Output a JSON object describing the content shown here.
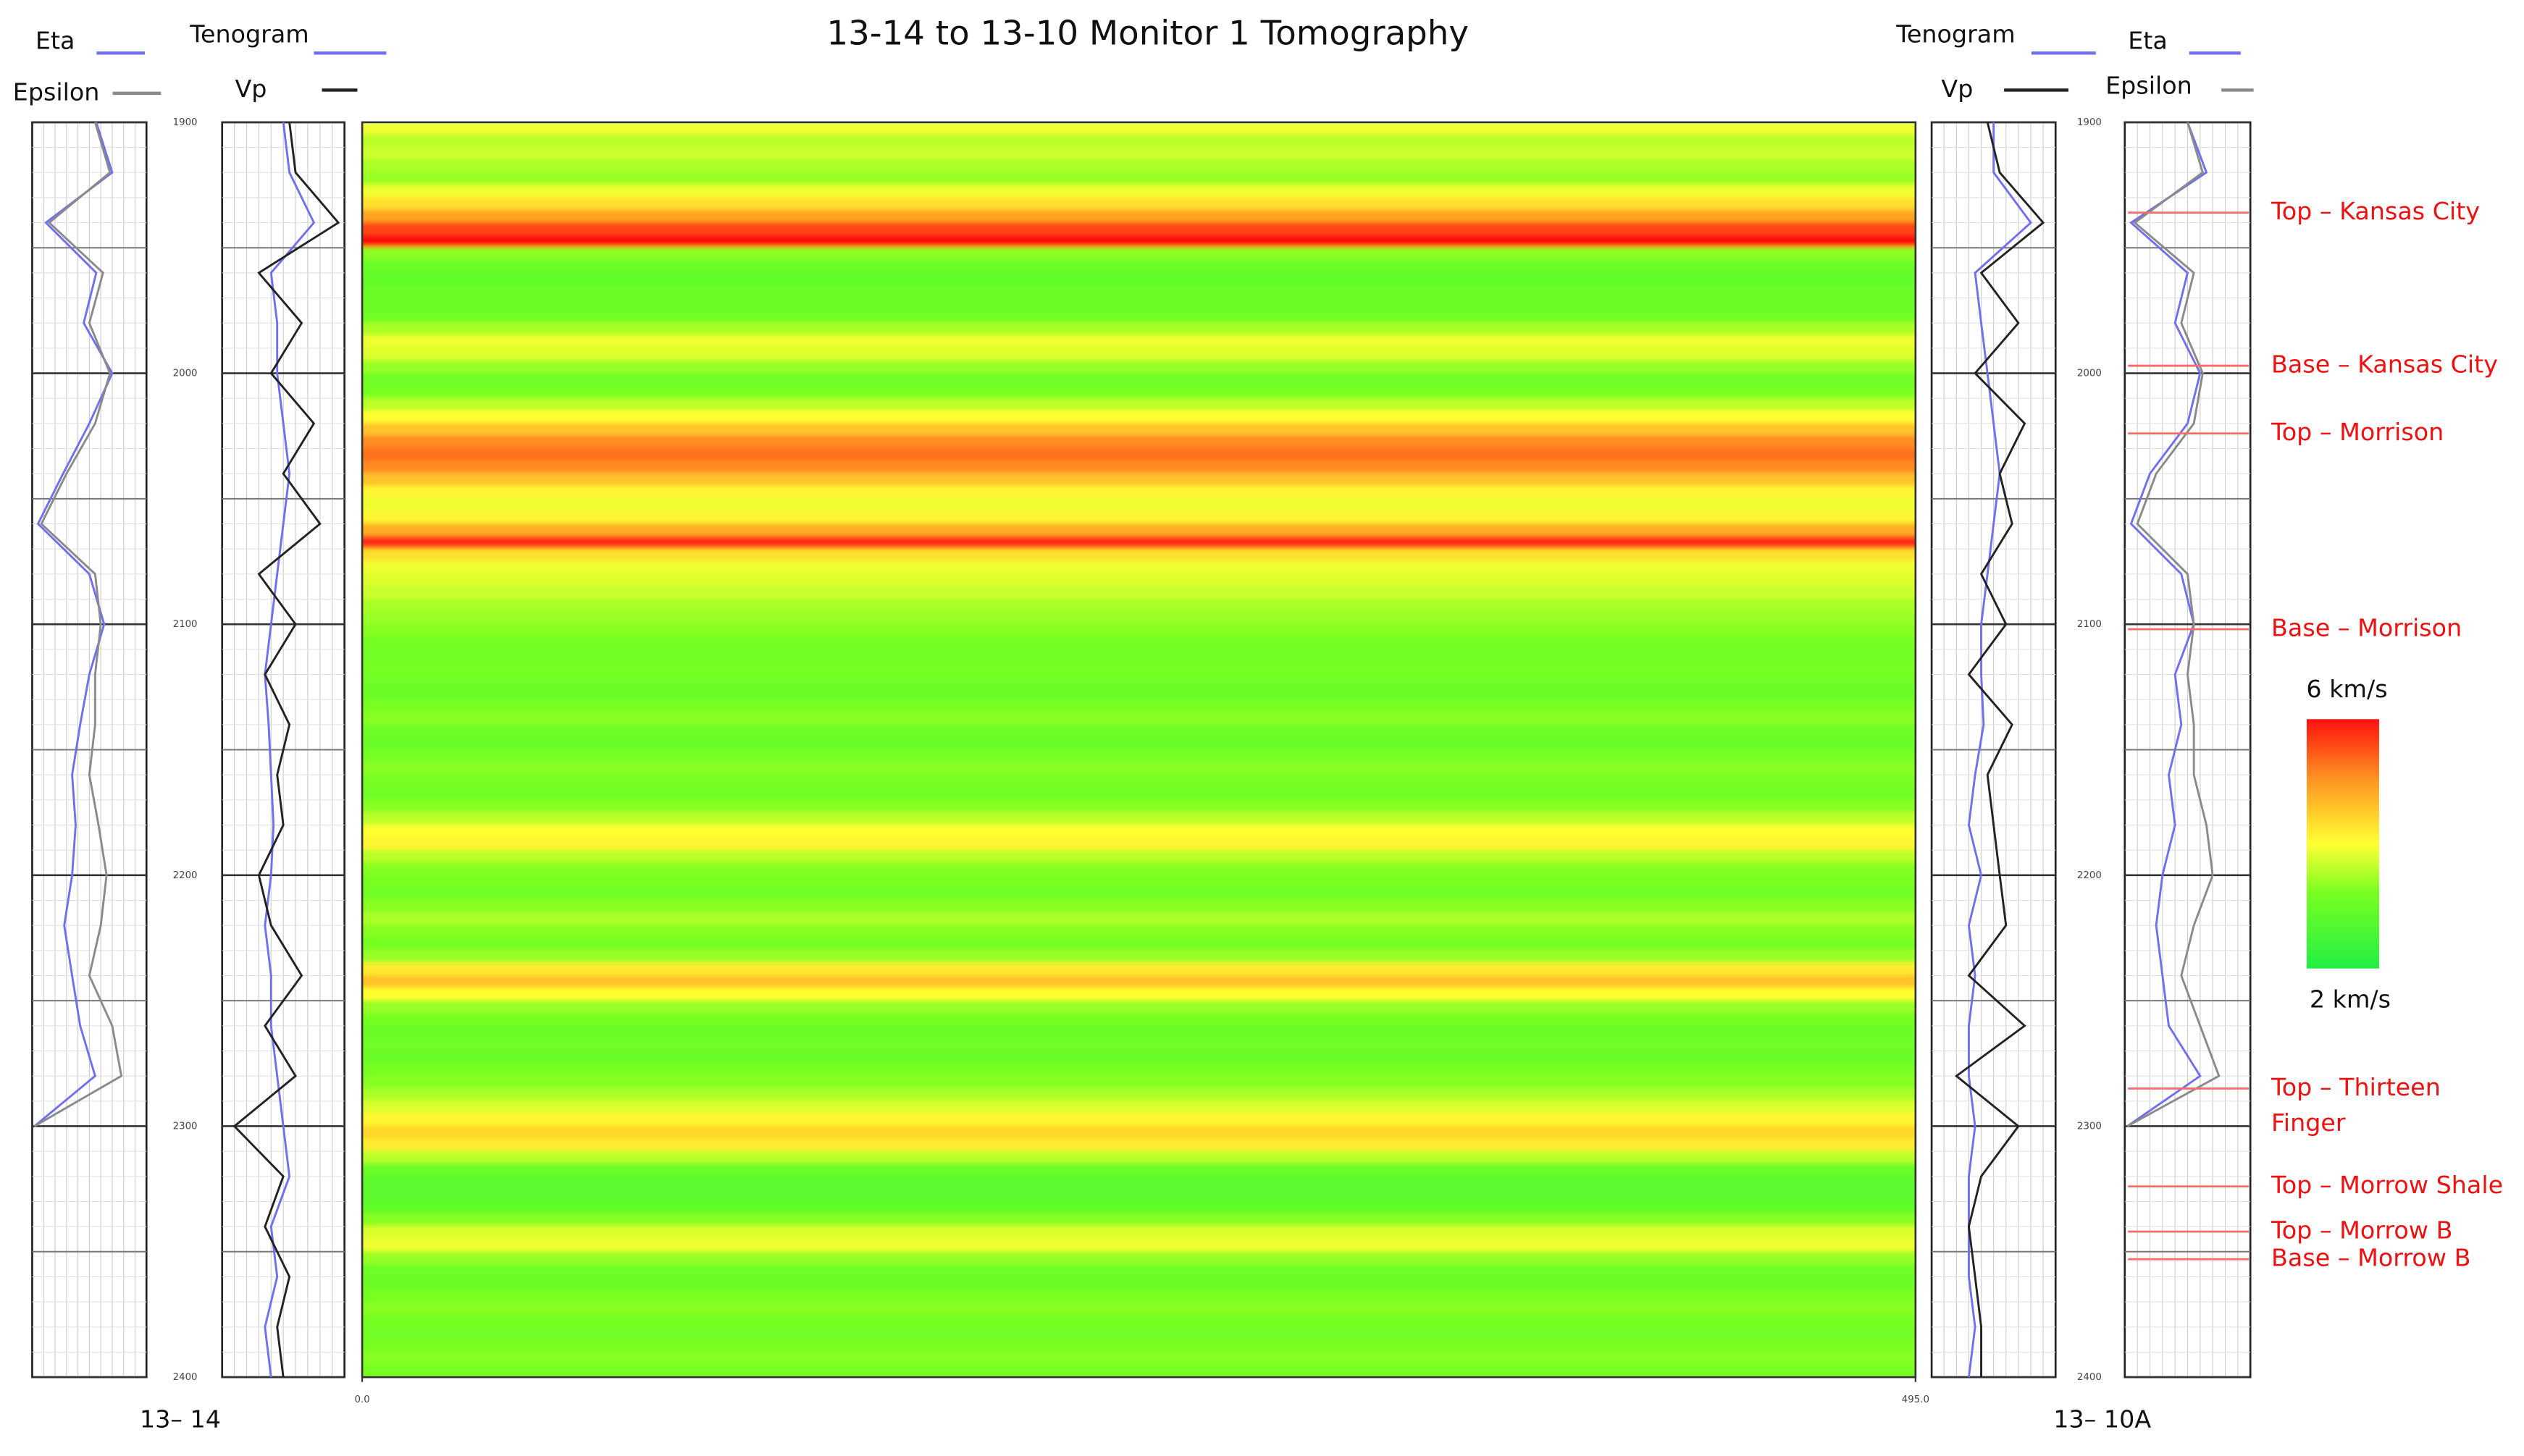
{
  "title": "13-14 to 13-10 Monitor 1 Tomography",
  "depth_axis": {
    "lim": [
      1900,
      2400
    ],
    "ticks": [
      1900,
      2000,
      2100,
      2200,
      2300,
      2400
    ]
  },
  "tomogram": {
    "xticks": [
      {
        "value": 0,
        "label": "0.0"
      },
      {
        "value": 495,
        "label": "495.0"
      }
    ],
    "depths": [
      1900,
      1905,
      1910,
      1915,
      1920,
      1925,
      1930,
      1935,
      1940,
      1945,
      1950,
      1955,
      1960,
      1965,
      1970,
      1975,
      1980,
      1985,
      1990,
      1995,
      2000,
      2005,
      2010,
      2015,
      2020,
      2025,
      2030,
      2035,
      2040,
      2045,
      2050,
      2055,
      2060,
      2065,
      2070,
      2075,
      2080,
      2085,
      2090,
      2095,
      2100,
      2105,
      2110,
      2115,
      2120,
      2125,
      2130,
      2135,
      2140,
      2145,
      2150,
      2155,
      2160,
      2165,
      2170,
      2175,
      2180,
      2185,
      2190,
      2195,
      2200,
      2205,
      2210,
      2215,
      2220,
      2225,
      2230,
      2235,
      2240,
      2245,
      2250,
      2255,
      2260,
      2265,
      2270,
      2275,
      2280,
      2285,
      2290,
      2295,
      2300,
      2305,
      2310,
      2315,
      2320,
      2325,
      2330,
      2335,
      2340,
      2345,
      2350,
      2355,
      2360,
      2365,
      2370,
      2375,
      2380,
      2385,
      2390,
      2395,
      2400
    ],
    "velocity_km_s": [
      3.9,
      3.6,
      3.7,
      3.5,
      3.4,
      3.9,
      4.3,
      4.9,
      5.6,
      6.0,
      3.3,
      3.0,
      2.9,
      3.0,
      3.0,
      3.1,
      3.5,
      3.9,
      3.8,
      3.4,
      3.1,
      3.2,
      3.6,
      4.0,
      4.6,
      5.1,
      5.3,
      5.1,
      4.6,
      4.1,
      3.9,
      4.1,
      4.8,
      5.8,
      4.3,
      3.9,
      3.8,
      3.7,
      3.5,
      3.4,
      3.3,
      3.2,
      3.1,
      3.2,
      3.1,
      3.0,
      3.2,
      3.3,
      3.1,
      3.0,
      3.2,
      3.3,
      3.2,
      3.1,
      3.3,
      3.6,
      4.0,
      4.1,
      3.6,
      3.3,
      3.2,
      3.1,
      3.3,
      3.5,
      3.3,
      3.2,
      3.4,
      4.2,
      4.6,
      4.0,
      3.4,
      3.2,
      3.0,
      3.1,
      3.0,
      3.2,
      3.3,
      3.5,
      3.8,
      4.1,
      4.4,
      4.2,
      3.6,
      3.0,
      2.8,
      2.8,
      2.9,
      3.3,
      3.8,
      3.9,
      3.4,
      3.1,
      3.0,
      3.2,
      3.3,
      3.2,
      3.1,
      3.2,
      3.3,
      3.2,
      3.2
    ]
  },
  "colorbar": {
    "range": [
      2,
      6
    ],
    "max_label": "6 km/s",
    "min_label": "2 km/s"
  },
  "wells": [
    {
      "name": "13– 14",
      "log_depths": [
        1900,
        1920,
        1940,
        1960,
        1980,
        2000,
        2020,
        2040,
        2060,
        2080,
        2100,
        2120,
        2140,
        2160,
        2180,
        2200,
        2220,
        2240,
        2260,
        2280,
        2300,
        2320,
        2340,
        2360,
        2380,
        2400
      ],
      "tracks": [
        {
          "curves": [
            {
              "name": "Eta",
              "color": "#6f6ff0",
              "values": [
                0.56,
                0.7,
                0.12,
                0.56,
                0.45,
                0.7,
                0.5,
                0.27,
                0.05,
                0.5,
                0.63,
                0.5,
                0.42,
                0.35,
                0.38,
                0.35,
                0.28,
                0.35,
                0.42,
                0.55,
                0.02,
                null,
                null,
                null,
                null,
                null
              ]
            },
            {
              "name": "Epsilon",
              "color": "#8a8a8a",
              "values": [
                0.55,
                0.68,
                0.15,
                0.62,
                0.5,
                0.68,
                0.55,
                0.3,
                0.08,
                0.55,
                0.6,
                0.55,
                0.55,
                0.5,
                0.58,
                0.65,
                0.6,
                0.5,
                0.7,
                0.78,
                0.02,
                null,
                null,
                null,
                null,
                null
              ]
            }
          ]
        },
        {
          "curves": [
            {
              "name": "Tenogram",
              "color": "#6f6ff0",
              "values": [
                0.5,
                0.55,
                0.75,
                0.4,
                0.45,
                0.45,
                0.5,
                0.55,
                0.5,
                0.45,
                0.4,
                0.35,
                0.38,
                0.4,
                0.42,
                0.4,
                0.35,
                0.4,
                0.4,
                0.45,
                0.5,
                0.55,
                0.4,
                0.45,
                0.35,
                0.4
              ]
            },
            {
              "name": "Vp",
              "color": "#222222",
              "values": [
                0.55,
                0.6,
                0.95,
                0.3,
                0.65,
                0.4,
                0.75,
                0.5,
                0.8,
                0.3,
                0.6,
                0.35,
                0.55,
                0.45,
                0.5,
                0.3,
                0.4,
                0.65,
                0.35,
                0.6,
                0.1,
                0.5,
                0.35,
                0.55,
                0.45,
                0.5
              ]
            }
          ]
        }
      ]
    },
    {
      "name": "13– 10A",
      "log_depths": [
        1900,
        1920,
        1940,
        1960,
        1980,
        2000,
        2020,
        2040,
        2060,
        2080,
        2100,
        2120,
        2140,
        2160,
        2180,
        2200,
        2220,
        2240,
        2260,
        2280,
        2300,
        2320,
        2340,
        2360,
        2380,
        2400
      ],
      "tracks": [
        {
          "curves": [
            {
              "name": "Tenogram",
              "color": "#6f6ff0",
              "values": [
                0.5,
                0.5,
                0.8,
                0.35,
                0.4,
                0.45,
                0.5,
                0.55,
                0.5,
                0.45,
                0.4,
                0.4,
                0.42,
                0.35,
                0.3,
                0.4,
                0.3,
                0.35,
                0.3,
                0.3,
                0.35,
                0.3,
                0.3,
                0.3,
                0.35,
                0.3
              ]
            },
            {
              "name": "Vp",
              "color": "#222222",
              "values": [
                0.45,
                0.55,
                0.9,
                0.4,
                0.7,
                0.35,
                0.75,
                0.55,
                0.65,
                0.4,
                0.6,
                0.3,
                0.65,
                0.45,
                0.5,
                0.55,
                0.6,
                0.3,
                0.75,
                0.2,
                0.7,
                0.4,
                0.3,
                0.35,
                0.4,
                0.4
              ]
            }
          ]
        },
        {
          "curves": [
            {
              "name": "Eta",
              "color": "#6f6ff0",
              "values": [
                0.5,
                0.65,
                0.05,
                0.5,
                0.4,
                0.6,
                0.5,
                0.2,
                0.05,
                0.45,
                0.55,
                0.4,
                0.45,
                0.35,
                0.4,
                0.3,
                0.25,
                0.3,
                0.35,
                0.6,
                0.02,
                null,
                null,
                null,
                null,
                null
              ]
            },
            {
              "name": "Epsilon",
              "color": "#8a8a8a",
              "values": [
                0.5,
                0.62,
                0.08,
                0.55,
                0.45,
                0.62,
                0.55,
                0.25,
                0.1,
                0.5,
                0.55,
                0.5,
                0.55,
                0.55,
                0.65,
                0.7,
                0.55,
                0.45,
                0.6,
                0.75,
                0.02,
                null,
                null,
                null,
                null,
                null
              ]
            }
          ]
        }
      ]
    }
  ],
  "formations": [
    {
      "lines": [
        "Top – Kansas City"
      ],
      "depth": 1936
    },
    {
      "lines": [
        "Base – Kansas City"
      ],
      "depth": 1997
    },
    {
      "lines": [
        "Top – Morrison"
      ],
      "depth": 2024
    },
    {
      "lines": [
        "Base – Morrison"
      ],
      "depth": 2102
    },
    {
      "lines": [
        "Top – Thirteen",
        "Finger"
      ],
      "depth": 2285
    },
    {
      "lines": [
        "Top – Morrow Shale"
      ],
      "depth": 2324
    },
    {
      "lines": [
        "Top – Morrow B"
      ],
      "depth": 2342
    },
    {
      "lines": [
        "Base – Morrow B"
      ],
      "depth": 2353
    }
  ]
}
